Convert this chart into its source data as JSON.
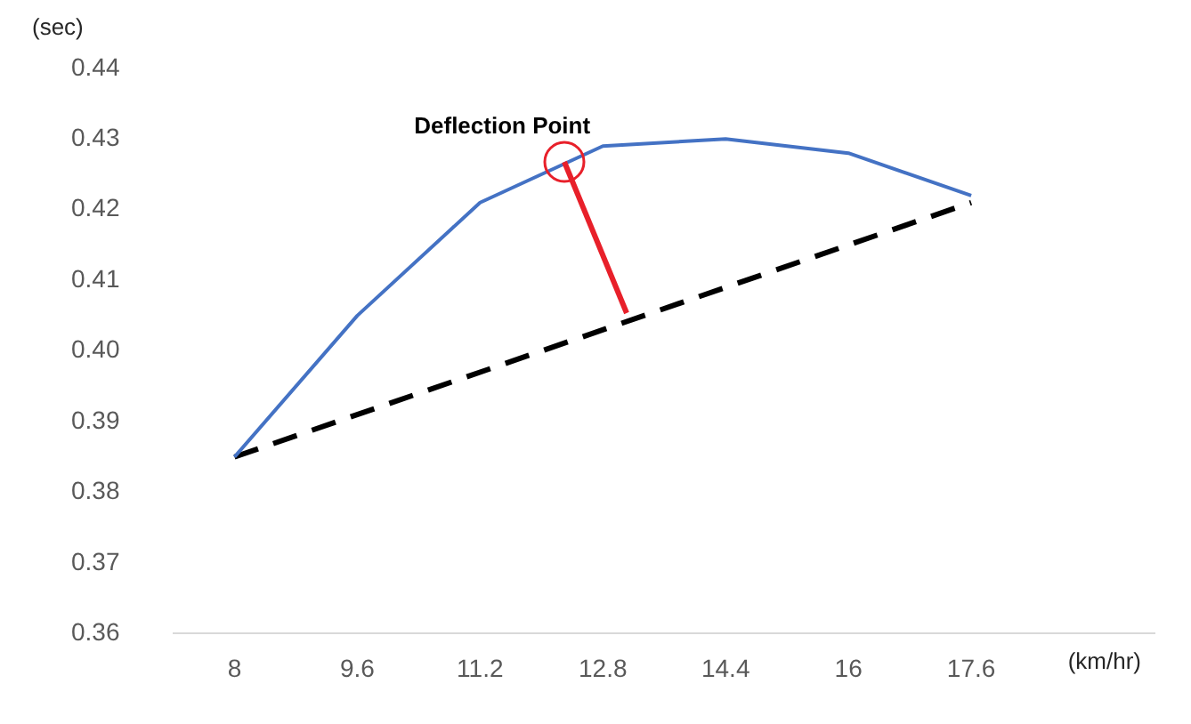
{
  "chart_data": {
    "type": "line",
    "ylabel": "(sec)",
    "xlabel": "(km/hr)",
    "x": [
      8,
      9.6,
      11.2,
      12.8,
      14.4,
      16,
      17.6
    ],
    "series": [
      {
        "color": "#4472c4",
        "values": [
          0.385,
          0.405,
          0.421,
          0.429,
          0.43,
          0.428,
          0.422
        ]
      },
      {
        "color": "#000000",
        "line_style": "dashed",
        "x": [
          8,
          17.6
        ],
        "values": [
          0.385,
          0.421
        ]
      }
    ],
    "xlim": [
      7.2,
      20
    ],
    "xticks": [
      8,
      9.6,
      11.2,
      12.8,
      14.4,
      16,
      17.6
    ],
    "ylim": [
      0.36,
      0.44
    ],
    "yticks": [
      {
        "value": 0.36,
        "label": "0.36"
      },
      {
        "value": 0.37,
        "label": "0.37"
      },
      {
        "value": 0.38,
        "label": "0.38"
      },
      {
        "value": 0.39,
        "label": "0.39"
      },
      {
        "value": 0.4,
        "label": "0.40"
      },
      {
        "value": 0.41,
        "label": "0.41"
      },
      {
        "value": 0.42,
        "label": "0.42"
      },
      {
        "value": 0.43,
        "label": "0.43"
      },
      {
        "value": 0.44,
        "label": "0.44"
      }
    ],
    "annotations": [
      {
        "text": "Deflection Point",
        "x": 12.3,
        "y": 0.4267
      }
    ],
    "marker": "none",
    "grid": false,
    "legend": false
  }
}
